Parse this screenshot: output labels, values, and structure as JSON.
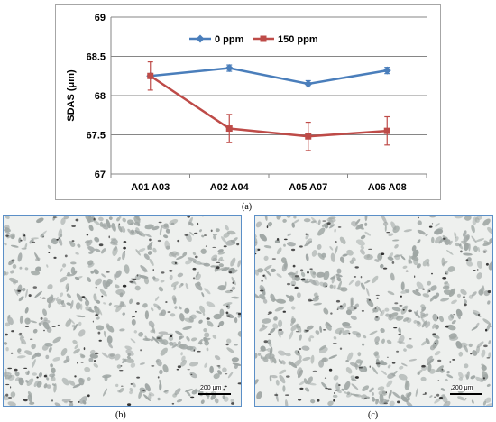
{
  "chart_data": {
    "type": "line",
    "categories": [
      "A01 A03",
      "A02 A04",
      "A05 A07",
      "A06 A08"
    ],
    "series": [
      {
        "name": "0 ppm",
        "values": [
          68.25,
          68.35,
          68.15,
          68.32
        ],
        "errors": [
          0.03,
          0.04,
          0.04,
          0.04
        ],
        "color": "#4a7ebb",
        "marker": "diamond"
      },
      {
        "name": "150 ppm",
        "values": [
          68.25,
          67.58,
          67.48,
          67.55
        ],
        "errors": [
          0.18,
          0.18,
          0.18,
          0.18
        ],
        "color": "#be4b48",
        "marker": "square"
      }
    ],
    "ylabel": "SDAS (μm)",
    "ylim": [
      67,
      69
    ],
    "yticks": [
      "67",
      "67.5",
      "68",
      "68.5",
      "69"
    ],
    "grid": true,
    "legend_position": "top-right"
  },
  "captions": {
    "a": "(a)",
    "b": "(b)",
    "c": "(c)"
  },
  "micrographs": {
    "b": {
      "scale_label": "200 μm"
    },
    "c": {
      "scale_label": "200 μm"
    }
  },
  "colors": {
    "frame_border": "#5b8fc7",
    "grid": "#868686",
    "micro_bg": "#eef0ee",
    "micro_phase": "#9fa6a4"
  }
}
